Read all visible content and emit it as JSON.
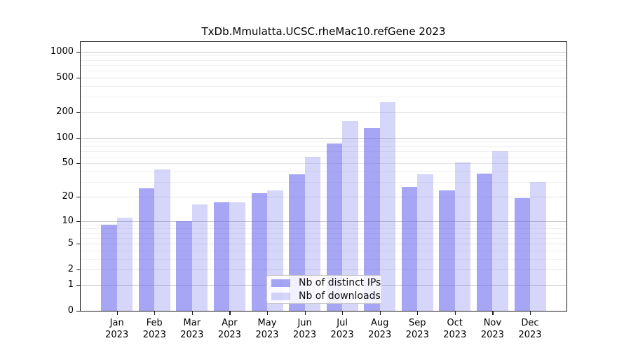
{
  "title": "TxDb.Mmulatta.UCSC.rheMac10.refGene 2023",
  "legend": {
    "items": [
      {
        "label": "Nb of distinct IPs",
        "color": "rgba(102,102,238,0.58)"
      },
      {
        "label": "Nb of downloads",
        "color": "rgba(102,102,238,0.27)"
      }
    ]
  },
  "chart_data": {
    "type": "bar",
    "scale": "log1p",
    "title": "TxDb.Mmulatta.UCSC.rheMac10.refGene 2023",
    "categories": [
      "Jan",
      "Feb",
      "Mar",
      "Apr",
      "May",
      "Jun",
      "Jul",
      "Aug",
      "Sep",
      "Oct",
      "Nov",
      "Dec"
    ],
    "year_label": "2023",
    "series": [
      {
        "name": "Nb of distinct IPs",
        "color": "rgba(102,102,238,0.58)",
        "values": [
          9,
          25,
          10,
          17,
          22,
          37,
          85,
          130,
          26,
          24,
          38,
          19
        ]
      },
      {
        "name": "Nb of downloads",
        "color": "rgba(102,102,238,0.27)",
        "values": [
          11,
          42,
          16,
          17,
          24,
          60,
          155,
          260,
          37,
          51,
          70,
          30
        ]
      }
    ],
    "yticks": [
      1000,
      500,
      200,
      100,
      50,
      20,
      10,
      5,
      2,
      1,
      0
    ],
    "ylim": [
      0,
      1000
    ],
    "grid": "on",
    "legend_position": "bottom-center-inside",
    "colors": {
      "axis": "#1a1a1a",
      "grid_major": "#c9c9c9",
      "grid_medium": "#e4e4e4",
      "grid_minor": "#f1f1f1"
    }
  }
}
